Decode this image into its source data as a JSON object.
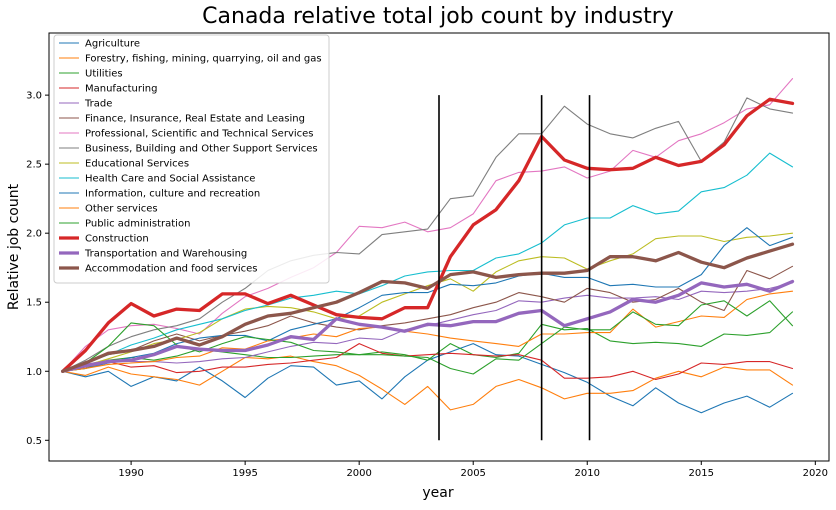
{
  "chart_data": {
    "type": "line",
    "title": "Canada relative total job count by industry",
    "xlabel": "year",
    "ylabel": "Relative job count",
    "xlim": [
      1986.4,
      2020.6
    ],
    "ylim": [
      0.35,
      3.45
    ],
    "x_ticks": [
      1990,
      1995,
      2000,
      2005,
      2010,
      2015,
      2020
    ],
    "y_ticks": [
      0.5,
      1.0,
      1.5,
      2.0,
      2.5,
      3.0
    ],
    "x_tick_labels": [
      "1990",
      "1995",
      "2000",
      "2005",
      "2010",
      "2015",
      "2020"
    ],
    "y_tick_labels": [
      "0.5",
      "1.0",
      "1.5",
      "2.0",
      "2.5",
      "3.0"
    ],
    "grid": false,
    "legend_position": "upper-left",
    "x": [
      1987,
      1988,
      1989,
      1990,
      1991,
      1992,
      1993,
      1994,
      1995,
      1996,
      1997,
      1998,
      1999,
      2000,
      2001,
      2002,
      2003,
      2004,
      2005,
      2006,
      2007,
      2008,
      2009,
      2010,
      2011,
      2012,
      2013,
      2014,
      2015,
      2016,
      2017,
      2018,
      2019
    ],
    "vertical_lines": [
      2003.5,
      2008,
      2010.1
    ],
    "vline_range": [
      0.5,
      3.0
    ],
    "series": [
      {
        "name": "Agriculture",
        "color": "#1f77b4",
        "width": 1,
        "values": [
          1.0,
          0.96,
          1.0,
          0.89,
          0.96,
          0.93,
          1.03,
          0.93,
          0.81,
          0.95,
          1.04,
          1.03,
          0.9,
          0.93,
          0.8,
          0.96,
          1.08,
          1.14,
          1.2,
          1.12,
          1.11,
          1.05,
          0.99,
          0.92,
          0.82,
          0.75,
          0.88,
          0.77,
          0.7,
          0.77,
          0.82,
          0.74,
          0.84
        ]
      },
      {
        "name": "Forestry, fishing, mining, quarrying, oil and gas",
        "color": "#ff7f0e",
        "width": 1,
        "values": [
          1.0,
          0.97,
          1.03,
          0.98,
          0.96,
          0.94,
          0.9,
          1.0,
          1.1,
          1.09,
          1.11,
          1.07,
          1.04,
          0.97,
          0.87,
          0.76,
          0.89,
          0.72,
          0.76,
          0.89,
          0.94,
          0.88,
          0.8,
          0.84,
          0.84,
          0.86,
          0.95,
          1.0,
          0.96,
          1.03,
          1.01,
          1.01,
          0.9
        ]
      },
      {
        "name": "Utilities",
        "color": "#2ca02c",
        "width": 1,
        "values": [
          1.0,
          1.02,
          1.08,
          1.1,
          1.08,
          1.11,
          1.16,
          1.14,
          1.12,
          1.1,
          1.1,
          1.11,
          1.12,
          1.12,
          1.14,
          1.12,
          1.08,
          1.2,
          1.12,
          1.1,
          1.13,
          1.34,
          1.3,
          1.31,
          1.22,
          1.2,
          1.21,
          1.2,
          1.18,
          1.27,
          1.26,
          1.28,
          1.43
        ]
      },
      {
        "name": "Manufacturing",
        "color": "#d62728",
        "width": 1,
        "values": [
          1.0,
          1.03,
          1.07,
          1.03,
          1.04,
          0.99,
          1.0,
          1.03,
          1.03,
          1.05,
          1.06,
          1.08,
          1.1,
          1.2,
          1.13,
          1.11,
          1.12,
          1.13,
          1.12,
          1.11,
          1.12,
          1.08,
          0.95,
          0.95,
          0.96,
          1.0,
          0.94,
          0.98,
          1.06,
          1.05,
          1.07,
          1.07,
          1.02
        ]
      },
      {
        "name": "Trade",
        "color": "#9467bd",
        "width": 1,
        "values": [
          1.0,
          1.05,
          1.08,
          1.07,
          1.07,
          1.06,
          1.07,
          1.09,
          1.1,
          1.14,
          1.18,
          1.21,
          1.2,
          1.24,
          1.23,
          1.3,
          1.33,
          1.37,
          1.41,
          1.44,
          1.51,
          1.5,
          1.53,
          1.55,
          1.53,
          1.53,
          1.54,
          1.52,
          1.58,
          1.57,
          1.58,
          1.6,
          1.64
        ]
      },
      {
        "name": "Finance, Insurance, Real Estate and Leasing",
        "color": "#8c564b",
        "width": 1,
        "values": [
          1.0,
          1.07,
          1.12,
          1.15,
          1.22,
          1.27,
          1.22,
          1.26,
          1.29,
          1.33,
          1.4,
          1.35,
          1.32,
          1.3,
          1.33,
          1.35,
          1.38,
          1.41,
          1.46,
          1.5,
          1.57,
          1.54,
          1.5,
          1.6,
          1.57,
          1.5,
          1.52,
          1.6,
          1.5,
          1.44,
          1.73,
          1.67,
          1.76
        ]
      },
      {
        "name": "Professional, Scientific and Technical Services",
        "color": "#e377c2",
        "width": 1,
        "values": [
          1.0,
          1.18,
          1.3,
          1.33,
          1.34,
          1.31,
          1.27,
          1.42,
          1.54,
          1.6,
          1.68,
          1.75,
          1.86,
          2.05,
          2.04,
          2.08,
          2.01,
          2.04,
          2.14,
          2.38,
          2.44,
          2.45,
          2.48,
          2.4,
          2.45,
          2.6,
          2.55,
          2.67,
          2.72,
          2.8,
          2.9,
          2.93,
          3.12
        ]
      },
      {
        "name": "Business, Building and Other Support Services",
        "color": "#7f7f7f",
        "width": 1,
        "values": [
          1.0,
          1.08,
          1.18,
          1.25,
          1.3,
          1.33,
          1.38,
          1.5,
          1.6,
          1.73,
          1.8,
          1.84,
          1.86,
          1.85,
          1.99,
          2.01,
          2.03,
          2.25,
          2.27,
          2.55,
          2.72,
          2.72,
          2.92,
          2.79,
          2.72,
          2.69,
          2.76,
          2.81,
          2.52,
          2.66,
          2.98,
          2.9,
          2.87
        ]
      },
      {
        "name": "Educational Services",
        "color": "#bcbd22",
        "width": 1,
        "values": [
          1.0,
          1.04,
          1.09,
          1.14,
          1.2,
          1.23,
          1.28,
          1.38,
          1.45,
          1.47,
          1.46,
          1.43,
          1.38,
          1.4,
          1.5,
          1.56,
          1.62,
          1.67,
          1.58,
          1.72,
          1.8,
          1.83,
          1.82,
          1.74,
          1.8,
          1.85,
          1.96,
          1.98,
          1.98,
          1.94,
          1.97,
          1.98,
          2.0
        ]
      },
      {
        "name": "Health Care and Social Assistance",
        "color": "#17becf",
        "width": 1,
        "values": [
          1.0,
          1.06,
          1.12,
          1.19,
          1.24,
          1.3,
          1.34,
          1.38,
          1.44,
          1.48,
          1.53,
          1.55,
          1.58,
          1.56,
          1.62,
          1.69,
          1.72,
          1.73,
          1.73,
          1.82,
          1.85,
          1.93,
          2.06,
          2.11,
          2.11,
          2.2,
          2.14,
          2.16,
          2.3,
          2.33,
          2.42,
          2.58,
          2.48
        ]
      },
      {
        "name": "Information, culture and recreation",
        "color": "#1f77b4",
        "width": 1,
        "values": [
          1.0,
          1.02,
          1.06,
          1.1,
          1.13,
          1.2,
          1.24,
          1.26,
          1.26,
          1.22,
          1.3,
          1.34,
          1.38,
          1.46,
          1.55,
          1.57,
          1.57,
          1.63,
          1.62,
          1.64,
          1.69,
          1.71,
          1.68,
          1.68,
          1.62,
          1.63,
          1.61,
          1.61,
          1.7,
          1.91,
          2.04,
          1.91,
          1.97
        ]
      },
      {
        "name": "Other services",
        "color": "#ff7f0e",
        "width": 1,
        "values": [
          1.0,
          1.02,
          1.05,
          1.06,
          1.07,
          1.1,
          1.11,
          1.17,
          1.16,
          1.22,
          1.24,
          1.27,
          1.25,
          1.31,
          1.32,
          1.29,
          1.27,
          1.24,
          1.22,
          1.2,
          1.18,
          1.27,
          1.27,
          1.28,
          1.28,
          1.45,
          1.32,
          1.36,
          1.4,
          1.39,
          1.52,
          1.56,
          1.58
        ]
      },
      {
        "name": "Public administration",
        "color": "#2ca02c",
        "width": 1,
        "values": [
          1.0,
          1.06,
          1.18,
          1.35,
          1.33,
          1.19,
          1.14,
          1.2,
          1.25,
          1.23,
          1.21,
          1.15,
          1.14,
          1.12,
          1.12,
          1.11,
          1.1,
          1.02,
          0.98,
          1.09,
          1.08,
          1.2,
          1.32,
          1.3,
          1.3,
          1.43,
          1.34,
          1.33,
          1.48,
          1.51,
          1.4,
          1.51,
          1.33
        ]
      },
      {
        "name": "Construction",
        "color": "#d62728",
        "width": 3,
        "values": [
          1.0,
          1.15,
          1.35,
          1.49,
          1.4,
          1.45,
          1.44,
          1.56,
          1.56,
          1.49,
          1.55,
          1.48,
          1.41,
          1.39,
          1.38,
          1.46,
          1.46,
          1.83,
          2.06,
          2.17,
          2.38,
          2.7,
          2.53,
          2.47,
          2.46,
          2.47,
          2.55,
          2.49,
          2.52,
          2.64,
          2.85,
          2.97,
          2.94
        ]
      },
      {
        "name": "Transportation and Warehousing",
        "color": "#9467bd",
        "width": 3,
        "values": [
          1.0,
          1.04,
          1.07,
          1.08,
          1.12,
          1.18,
          1.16,
          1.15,
          1.15,
          1.19,
          1.25,
          1.23,
          1.38,
          1.34,
          1.32,
          1.29,
          1.34,
          1.33,
          1.36,
          1.36,
          1.42,
          1.44,
          1.33,
          1.38,
          1.43,
          1.52,
          1.5,
          1.55,
          1.64,
          1.61,
          1.63,
          1.58,
          1.65
        ]
      },
      {
        "name": "Accommodation and food services",
        "color": "#8c564b",
        "width": 3,
        "values": [
          1.0,
          1.06,
          1.13,
          1.15,
          1.18,
          1.24,
          1.19,
          1.25,
          1.34,
          1.4,
          1.42,
          1.46,
          1.5,
          1.57,
          1.65,
          1.64,
          1.6,
          1.7,
          1.72,
          1.68,
          1.7,
          1.71,
          1.71,
          1.73,
          1.83,
          1.83,
          1.8,
          1.86,
          1.79,
          1.75,
          1.82,
          1.87,
          1.92
        ]
      }
    ]
  }
}
